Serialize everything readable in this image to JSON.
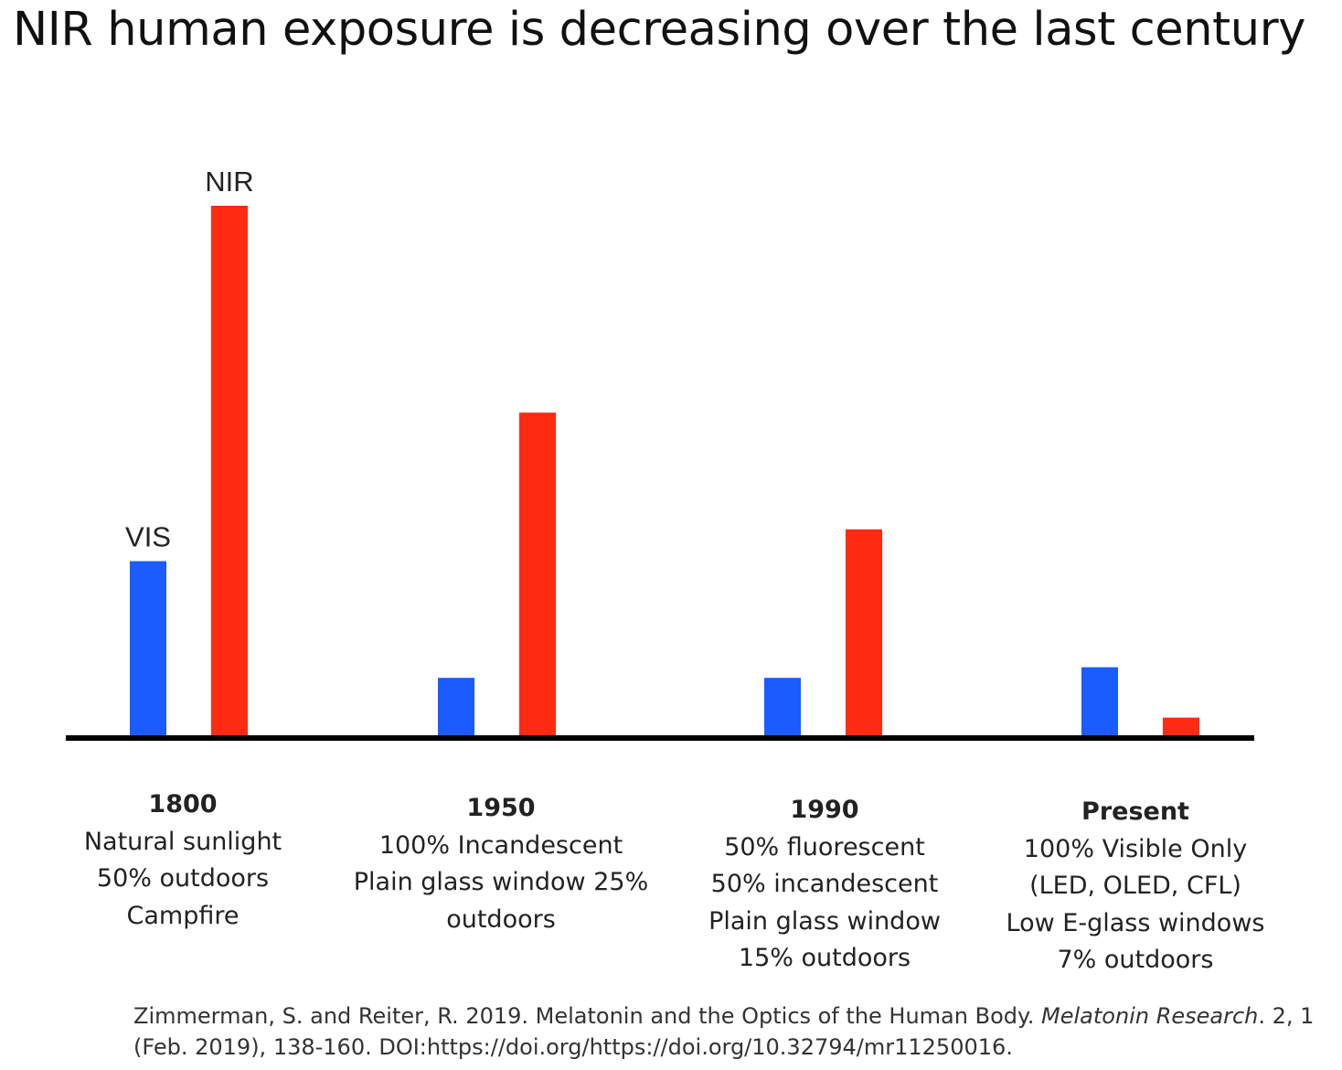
{
  "title": "NIR human exposure is decreasing over the last century",
  "chart_data": {
    "type": "bar",
    "categories": [
      "1800",
      "1950",
      "1990",
      "Present"
    ],
    "category_details": [
      [
        "Natural sunlight",
        "50% outdoors",
        "Campfire"
      ],
      [
        "100% Incandescent",
        "Plain glass window 25%",
        "outdoors"
      ],
      [
        "50% fluorescent",
        "50% incandescent",
        "Plain glass window",
        "15% outdoors"
      ],
      [
        "100% Visible Only",
        "(LED, OLED, CFL)",
        "Low E-glass windows",
        "7% outdoors"
      ]
    ],
    "series": [
      {
        "name": "VIS",
        "color": "#1a5cff",
        "values": [
          33,
          11,
          11,
          13
        ]
      },
      {
        "name": "NIR",
        "color": "#ff2a12",
        "values": [
          100,
          61,
          39,
          3.5
        ]
      }
    ],
    "ylim": [
      0,
      100
    ],
    "legend": "inline labels over first group",
    "axis_color": "#000000"
  },
  "reference": {
    "text_1": "Zimmerman, S. and Reiter, R. 2019. Melatonin and the Optics of the Human Body. ",
    "journal": "Melatonin Research",
    "text_2": ". 2, 1 (Feb. 2019), 138-160. DOI:https://doi.org/https://doi.org/10.32794/mr11250016."
  }
}
